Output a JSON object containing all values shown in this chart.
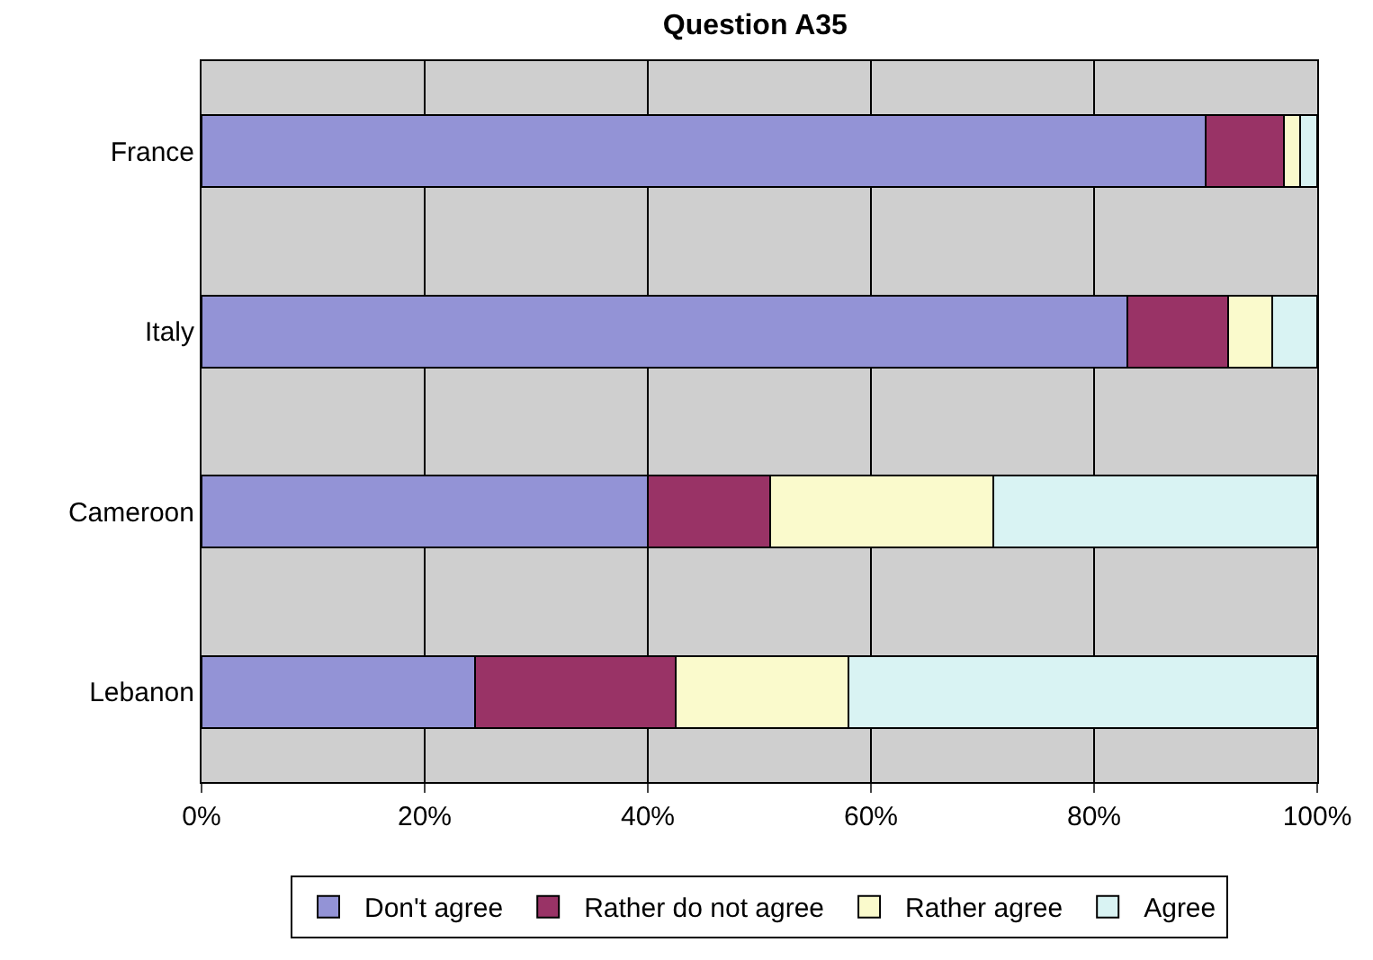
{
  "chart_data": {
    "type": "bar",
    "title": "Question A35",
    "orientation": "horizontal",
    "stacked": true,
    "categories": [
      "France",
      "Italy",
      "Cameroon",
      "Lebanon"
    ],
    "series": [
      {
        "name": "Don't agree",
        "color": "#9393d6",
        "values": [
          90,
          83,
          40,
          24.5
        ]
      },
      {
        "name": "Rather do not agree",
        "color": "#993366",
        "values": [
          7,
          9,
          11,
          18
        ]
      },
      {
        "name": "Rather agree",
        "color": "#fafacc",
        "values": [
          1.5,
          4,
          20,
          15.5
        ]
      },
      {
        "name": "Agree",
        "color": "#d9f3f3",
        "values": [
          1.5,
          4,
          29,
          42
        ]
      }
    ],
    "xlim": [
      0,
      100
    ],
    "xticks": [
      {
        "value": 0,
        "label": "0%"
      },
      {
        "value": 20,
        "label": "20%"
      },
      {
        "value": 40,
        "label": "40%"
      },
      {
        "value": 60,
        "label": "60%"
      },
      {
        "value": 80,
        "label": "80%"
      },
      {
        "value": 100,
        "label": "100%"
      }
    ],
    "grid": "x",
    "legend": "bottom"
  }
}
